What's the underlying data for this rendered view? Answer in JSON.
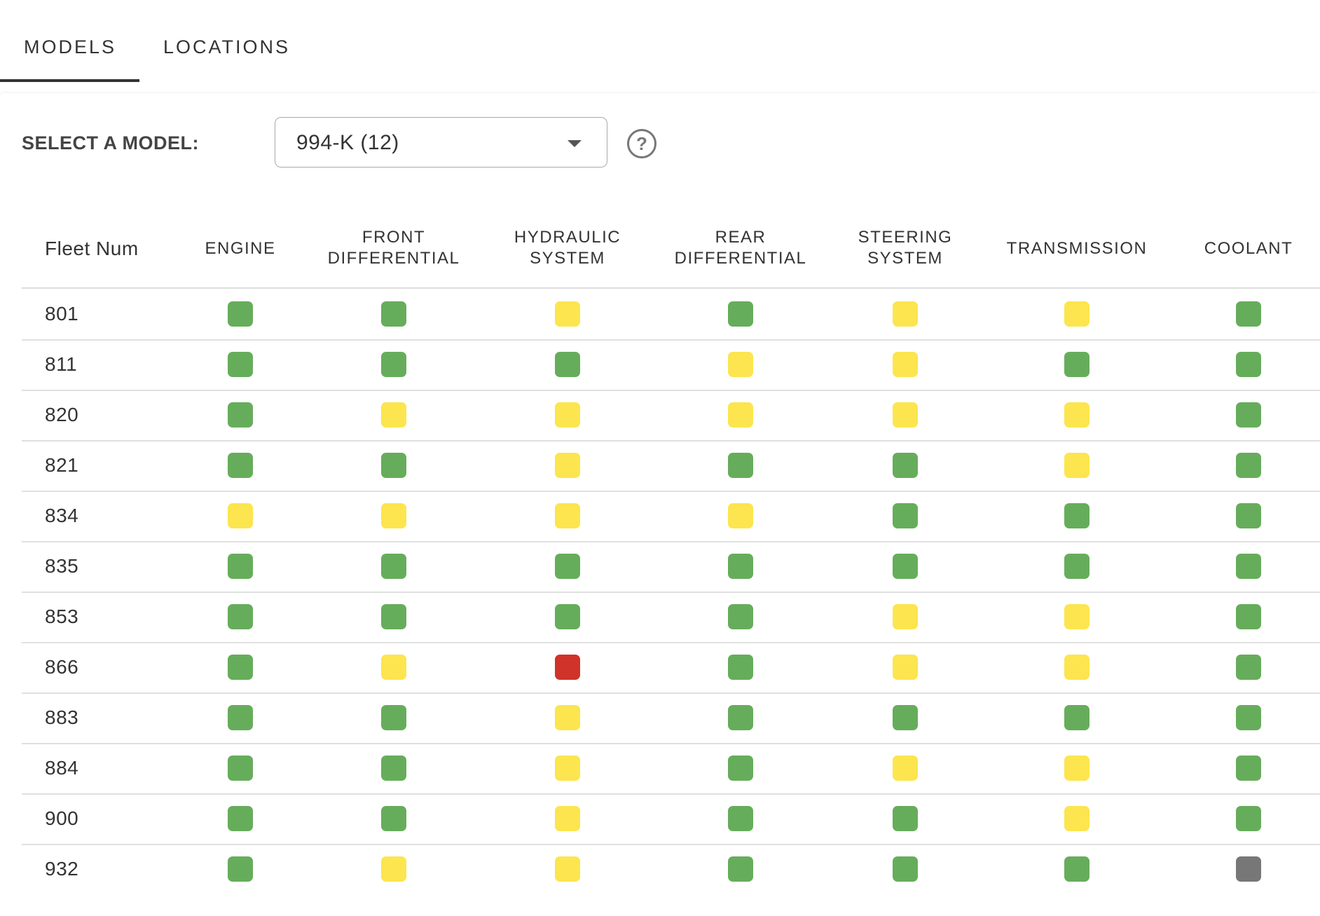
{
  "tabs": [
    {
      "label": "MODELS",
      "active": true
    },
    {
      "label": "LOCATIONS",
      "active": false
    }
  ],
  "model_select": {
    "label": "SELECT A MODEL:",
    "value": "994-K (12)",
    "help_icon": "question-circle-icon"
  },
  "status_colors": {
    "G": "#66ad5b",
    "Y": "#fce54e",
    "R": "#d0332a",
    "X": "#777777"
  },
  "table": {
    "columns": [
      "Fleet Num",
      "ENGINE",
      "FRONT DIFFERENTIAL",
      "HYDRAULIC SYSTEM",
      "REAR DIFFERENTIAL",
      "STEERING SYSTEM",
      "TRANSMISSION",
      "COOLANT"
    ],
    "rows": [
      {
        "fleet": "801",
        "status": [
          "G",
          "G",
          "Y",
          "G",
          "Y",
          "Y",
          "G"
        ]
      },
      {
        "fleet": "811",
        "status": [
          "G",
          "G",
          "G",
          "Y",
          "Y",
          "G",
          "G"
        ]
      },
      {
        "fleet": "820",
        "status": [
          "G",
          "Y",
          "Y",
          "Y",
          "Y",
          "Y",
          "G"
        ]
      },
      {
        "fleet": "821",
        "status": [
          "G",
          "G",
          "Y",
          "G",
          "G",
          "Y",
          "G"
        ]
      },
      {
        "fleet": "834",
        "status": [
          "Y",
          "Y",
          "Y",
          "Y",
          "G",
          "G",
          "G"
        ]
      },
      {
        "fleet": "835",
        "status": [
          "G",
          "G",
          "G",
          "G",
          "G",
          "G",
          "G"
        ]
      },
      {
        "fleet": "853",
        "status": [
          "G",
          "G",
          "G",
          "G",
          "Y",
          "Y",
          "G"
        ]
      },
      {
        "fleet": "866",
        "status": [
          "G",
          "Y",
          "R",
          "G",
          "Y",
          "Y",
          "G"
        ]
      },
      {
        "fleet": "883",
        "status": [
          "G",
          "G",
          "Y",
          "G",
          "G",
          "G",
          "G"
        ]
      },
      {
        "fleet": "884",
        "status": [
          "G",
          "G",
          "Y",
          "G",
          "Y",
          "Y",
          "G"
        ]
      },
      {
        "fleet": "900",
        "status": [
          "G",
          "G",
          "Y",
          "G",
          "G",
          "Y",
          "G"
        ]
      },
      {
        "fleet": "932",
        "status": [
          "G",
          "Y",
          "Y",
          "G",
          "G",
          "G",
          "X"
        ]
      }
    ]
  }
}
